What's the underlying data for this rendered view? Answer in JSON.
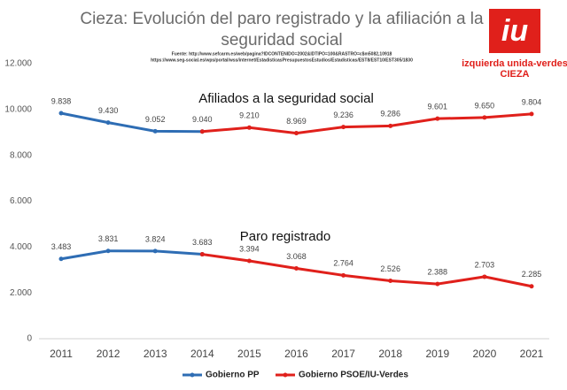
{
  "chart_data": {
    "type": "line",
    "title": "Cieza: Evolución del paro registrado y la afiliación a la seguridad social",
    "sources": [
      "Fuente: http://www.sefcarm.es/web/pagina?IDCONTENIDO=2002&IDTIPO=100&RASTRO=c$m5082,10918",
      "https://www.seg-social.es/wps/portal/wss/internet/EstadisticasPresupuestosEstudios/Estadisticas/EST8/EST10/EST305/1830"
    ],
    "logo": {
      "mark": "iu",
      "name": "izquierda unida-verdes",
      "place": "CIEZA"
    },
    "categories": [
      "2011",
      "2012",
      "2013",
      "2014",
      "2015",
      "2016",
      "2017",
      "2018",
      "2019",
      "2020",
      "2021"
    ],
    "ylim": [
      0,
      12000
    ],
    "yticks": [
      0,
      {
        "value": 2000,
        "label": "2.000"
      },
      {
        "value": 4000,
        "label": "4.000"
      },
      {
        "value": 6000,
        "label": "6.000"
      },
      {
        "value": 8000,
        "label": "8.000"
      },
      {
        "value": 10000,
        "label": "10.000"
      },
      {
        "value": 12000,
        "label": "12.000"
      }
    ],
    "grid": false,
    "legend": [
      {
        "name": "Gobierno PP",
        "color": "#2e6db4"
      },
      {
        "name": "Gobierno PSOE/IU-Verdes",
        "color": "#e0201b"
      }
    ],
    "groups": [
      {
        "label": "Afiliados a la seguridad social",
        "series": [
          {
            "values": [
              9838,
              9430,
              9052,
              9040,
              null,
              null,
              null,
              null,
              null,
              null,
              null
            ],
            "value_labels": [
              "9.838",
              "9.430",
              "9.052",
              "9.040",
              null,
              null,
              null,
              null,
              null,
              null,
              null
            ]
          },
          {
            "values": [
              null,
              null,
              null,
              9040,
              9210,
              8969,
              9236,
              9286,
              9601,
              9650,
              9804
            ],
            "value_labels": [
              null,
              null,
              null,
              null,
              "9.210",
              "8.969",
              "9.236",
              "9.286",
              "9.601",
              "9.650",
              "9.804"
            ]
          }
        ]
      },
      {
        "label": "Paro registrado",
        "series": [
          {
            "values": [
              3483,
              3831,
              3824,
              3683,
              null,
              null,
              null,
              null,
              null,
              null,
              null
            ],
            "value_labels": [
              "3.483",
              "3.831",
              "3.824",
              "3.683",
              null,
              null,
              null,
              null,
              null,
              null,
              null
            ]
          },
          {
            "values": [
              null,
              null,
              null,
              3683,
              3394,
              3068,
              2764,
              2526,
              2388,
              2703,
              2285
            ],
            "value_labels": [
              null,
              null,
              null,
              null,
              "3.394",
              "3.068",
              "2.764",
              "2.526",
              "2.388",
              "2.703",
              "2.285"
            ]
          }
        ]
      }
    ]
  }
}
